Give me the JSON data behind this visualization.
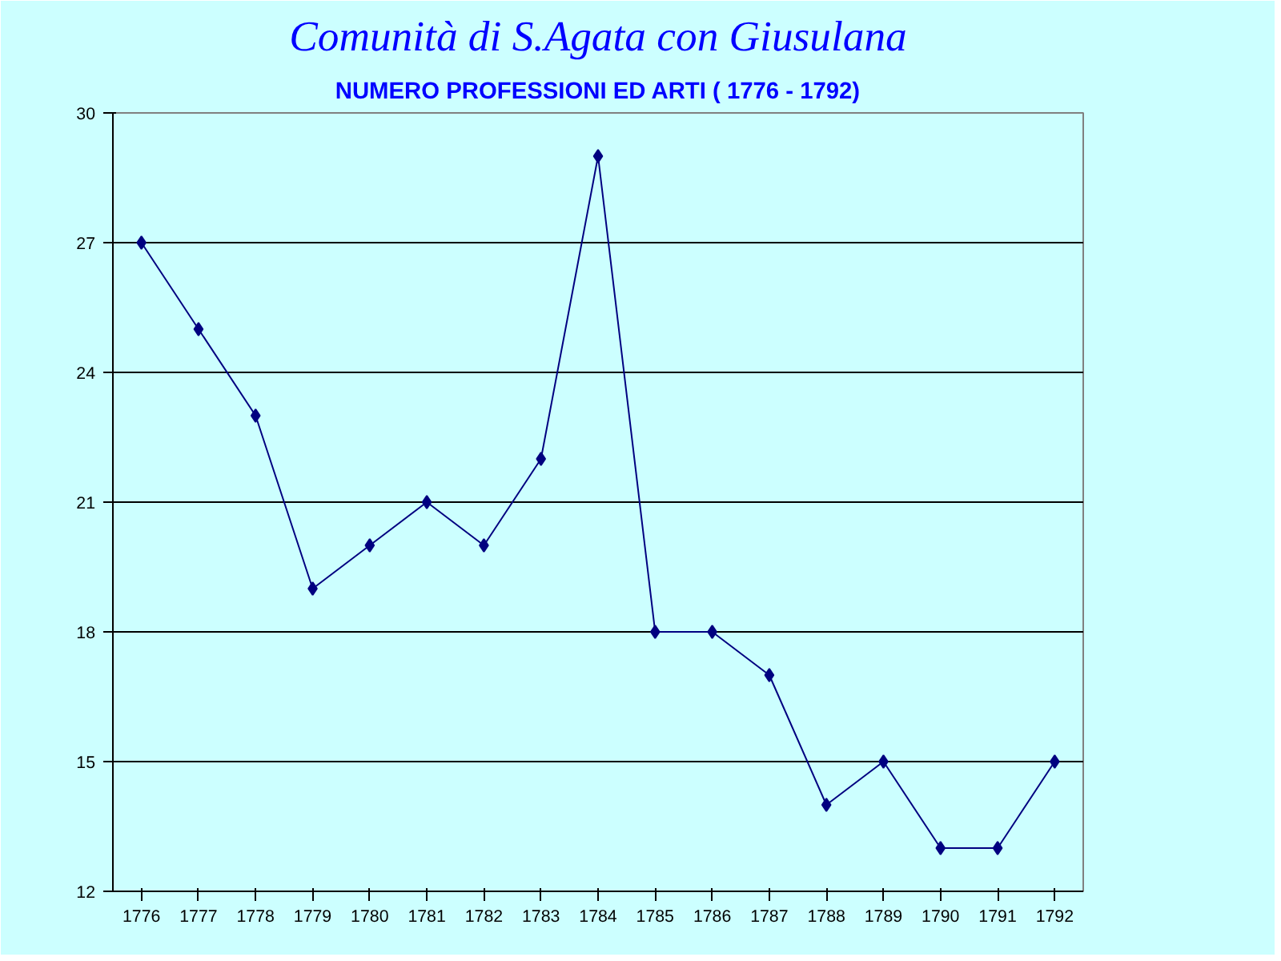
{
  "chart_data": {
    "type": "line",
    "title": "Comunità di S.Agata con Giusulana",
    "subtitle": "NUMERO PROFESSIONI ED ARTI ( 1776 - 1792)",
    "categories": [
      "1776",
      "1777",
      "1778",
      "1779",
      "1780",
      "1781",
      "1782",
      "1783",
      "1784",
      "1785",
      "1786",
      "1787",
      "1788",
      "1789",
      "1790",
      "1791",
      "1792"
    ],
    "series": [
      {
        "color": "#000080",
        "values": [
          27,
          25,
          23,
          19,
          20,
          21,
          20,
          22,
          29,
          18,
          18,
          17,
          14,
          15,
          13,
          13,
          15
        ]
      }
    ],
    "ylim": [
      12,
      30
    ],
    "yticks": [
      12,
      15,
      18,
      21,
      24,
      27,
      30
    ],
    "grid": "y",
    "marker": "diamond",
    "line_style": "solid"
  }
}
